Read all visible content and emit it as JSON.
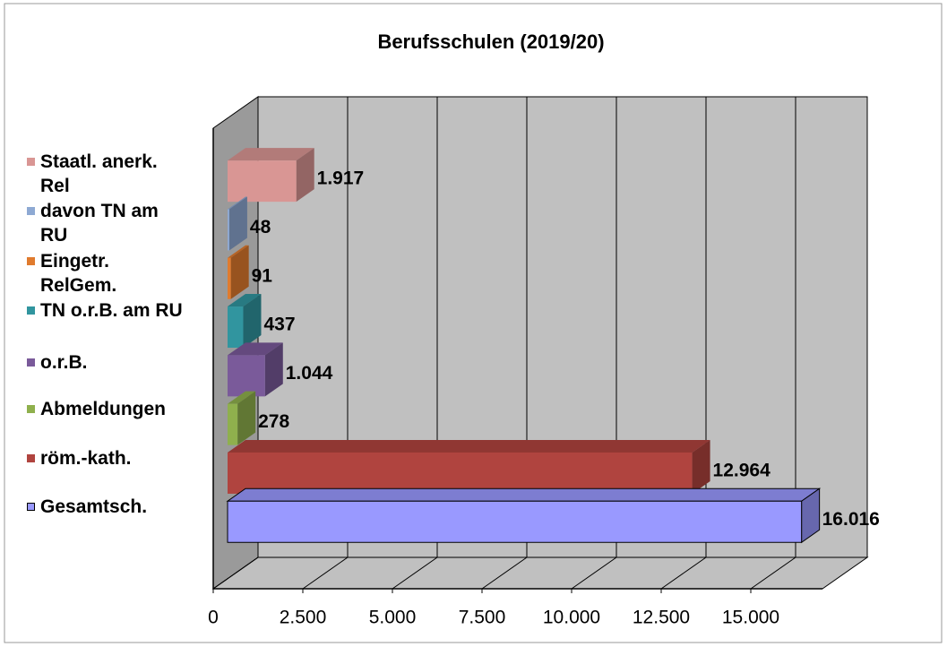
{
  "chart_data": {
    "type": "bar",
    "orientation": "horizontal",
    "title": "Berufsschulen (2019/20)",
    "categories": [
      "Staatl. anerk. Rel",
      "davon TN am RU",
      "Eingetr. RelGem.",
      "TN o.r.B. am RU",
      "o.r.B.",
      "Abmeldungen",
      "röm.-kath.",
      "Gesamtsch."
    ],
    "values": [
      1917,
      48,
      91,
      437,
      1044,
      278,
      12964,
      16016
    ],
    "value_labels": [
      "1.917",
      "48",
      "91",
      "437",
      "1.044",
      "278",
      "12.964",
      "16.016"
    ],
    "colors": [
      "#d99694",
      "#8ea9d3",
      "#e07b2e",
      "#31959f",
      "#7a5a9a",
      "#8fb04d",
      "#b0443f",
      "#9999ff"
    ],
    "xlim": [
      0,
      17000
    ],
    "xticks": [
      0,
      {
        "value": 2500,
        "label": "2.500"
      },
      {
        "value": 5000,
        "label": "5.000"
      },
      {
        "value": 7500,
        "label": "7.500"
      },
      {
        "value": 10000,
        "label": "10.000"
      },
      {
        "value": 12500,
        "label": "12.500"
      },
      {
        "value": 15000,
        "label": "15.000"
      }
    ],
    "grid": true,
    "legend": "left"
  }
}
